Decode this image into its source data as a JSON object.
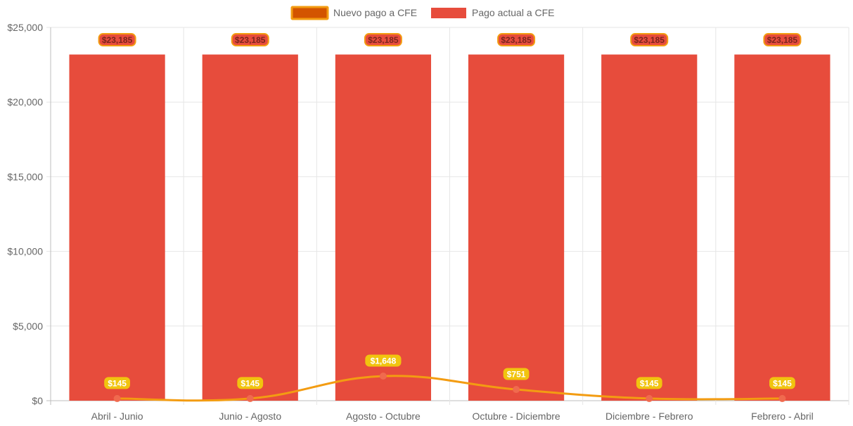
{
  "chart_data": {
    "type": "bar",
    "title": "",
    "xlabel": "",
    "ylabel": "",
    "ylim": [
      0,
      25000
    ],
    "yticks": [
      0,
      5000,
      10000,
      15000,
      20000,
      25000
    ],
    "ytick_labels": [
      "$0",
      "$5,000",
      "$10,000",
      "$15,000",
      "$20,000",
      "$25,000"
    ],
    "categories": [
      "Abril - Junio",
      "Junio - Agosto",
      "Agosto - Octubre",
      "Octubre - Diciembre",
      "Diciembre - Febrero",
      "Febrero - Abril"
    ],
    "legend_position": "top-center",
    "grid": true,
    "series": [
      {
        "name": "Nuevo pago a CFE",
        "kind": "line",
        "color": "#f39c12",
        "point_color": "#f06a4e",
        "label_bg": "#f1c40f",
        "label_color": "#ffffff",
        "legend_fill": "#d35400",
        "legend_border": "#f39c12",
        "values": [
          145,
          145,
          1648,
          751,
          145,
          145
        ],
        "labels": [
          "$145",
          "$145",
          "$1,648",
          "$751",
          "$145",
          "$145"
        ]
      },
      {
        "name": "Pago actual a CFE",
        "kind": "bar",
        "color": "#e74c3c",
        "label_bg": "#e74c3c",
        "label_border": "#f39c12",
        "label_color": "#7b241c",
        "values": [
          23185,
          23185,
          23185,
          23185,
          23185,
          23185
        ],
        "labels": [
          "$23,185",
          "$23,185",
          "$23,185",
          "$23,185",
          "$23,185",
          "$23,185"
        ]
      }
    ]
  }
}
